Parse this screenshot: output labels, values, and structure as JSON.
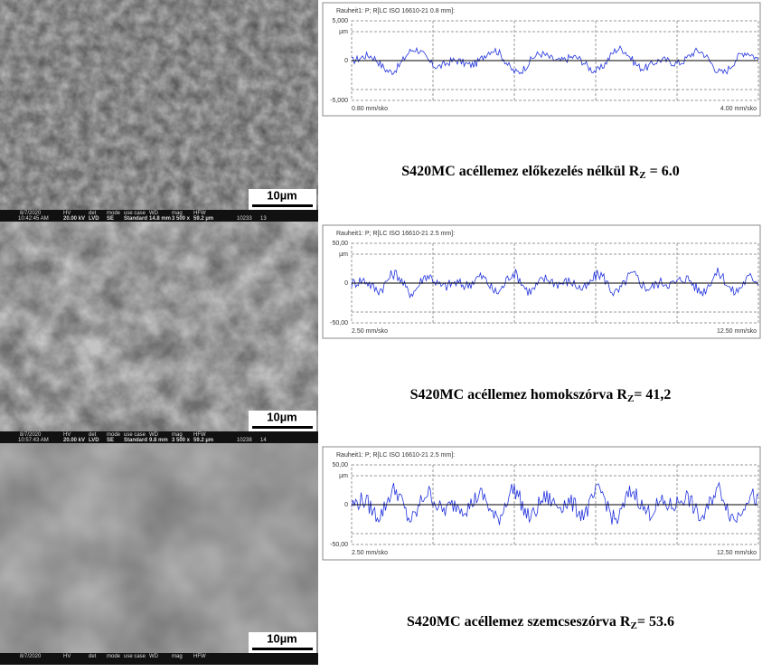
{
  "panels": [
    {
      "sem": {
        "date": "8/7/2020",
        "time": "10:42:45 AM",
        "fields": [
          [
            "HV",
            "20.00 kV"
          ],
          [
            "det",
            "LVD"
          ],
          [
            "mode",
            "SE"
          ],
          [
            "use case",
            "Standard"
          ],
          [
            "WD",
            "14.8 mm"
          ],
          [
            "mag",
            "3 500 x"
          ],
          [
            "HFW",
            "59.2 µm"
          ]
        ],
        "id": "10233",
        "num": "13",
        "scale_bar": "10µm"
      },
      "profile": {
        "header": "Rauheit1: P; R[LC ISO 16610-21 0.8 mm]:",
        "y_labels": [
          "5,000",
          "µm",
          "0",
          "-5,000"
        ],
        "x_left": "0.80 mm/sko",
        "x_right": "4.00 mm/sko"
      },
      "caption": {
        "text": "S420MC acéllemez előkezelés nélkül R",
        "sub": "Z",
        "value": " = 6.0"
      }
    },
    {
      "sem": {
        "date": "8/7/2020",
        "time": "10:57:43 AM",
        "fields": [
          [
            "HV",
            "20.00 kV"
          ],
          [
            "det",
            "LVD"
          ],
          [
            "mode",
            "SE"
          ],
          [
            "use case",
            "Standard"
          ],
          [
            "WD",
            "9.8 mm"
          ],
          [
            "mag",
            "3 500 x"
          ],
          [
            "HFW",
            "59.2 µm"
          ]
        ],
        "id": "10238",
        "num": "14",
        "scale_bar": "10µm"
      },
      "profile": {
        "header": "Rauheit1: P; R[LC ISO 16610-21 2.5 mm]:",
        "y_labels": [
          "50,00",
          "µm",
          "0",
          "-50,00"
        ],
        "x_left": "2.50 mm/sko",
        "x_right": "12.50 mm/sko"
      },
      "caption": {
        "text": "S420MC acéllemez homokszórva   R",
        "sub": "Z",
        "value": "= 41,2"
      }
    },
    {
      "sem": {
        "date": "8/7/2020",
        "time": "",
        "fields": [
          [
            "HV",
            ""
          ],
          [
            "det",
            ""
          ],
          [
            "mode",
            ""
          ],
          [
            "use case",
            ""
          ],
          [
            "WD",
            ""
          ],
          [
            "mag",
            ""
          ],
          [
            "HFW",
            ""
          ]
        ],
        "id": "",
        "num": "",
        "scale_bar": "10µm"
      },
      "profile": {
        "header": "Rauheit1: P; R[LC ISO 16610-21 2.5 mm]:",
        "y_labels": [
          "50,00",
          "µm",
          "0",
          "-50,00"
        ],
        "x_left": "2.50 mm/sko",
        "x_right": "12.50 mm/sko"
      },
      "caption": {
        "text": "S420MC acéllemez szemcseszórva   R",
        "sub": "Z",
        "value": "= 53.6"
      }
    }
  ]
}
